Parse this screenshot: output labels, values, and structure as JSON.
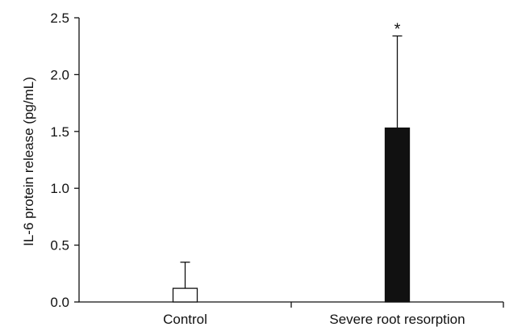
{
  "chart_data": {
    "type": "bar",
    "categories": [
      "Control",
      "Severe root resorption"
    ],
    "values": [
      0.12,
      1.53
    ],
    "error_plus": [
      0.23,
      0.81
    ],
    "bar_colors": [
      "#ffffff",
      "#111111"
    ],
    "annotations": [
      "",
      "*"
    ],
    "title": "",
    "xlabel": "",
    "ylabel": "IL-6 protein release (pg/mL)",
    "ylim": [
      0,
      2.5
    ],
    "yticks": [
      0.0,
      0.5,
      1.0,
      1.5,
      2.0,
      2.5
    ],
    "ytick_labels": [
      "0.0",
      "0.5",
      "1.0",
      "1.5",
      "2.0",
      "2.5"
    ],
    "grid": false,
    "legend": "none"
  }
}
